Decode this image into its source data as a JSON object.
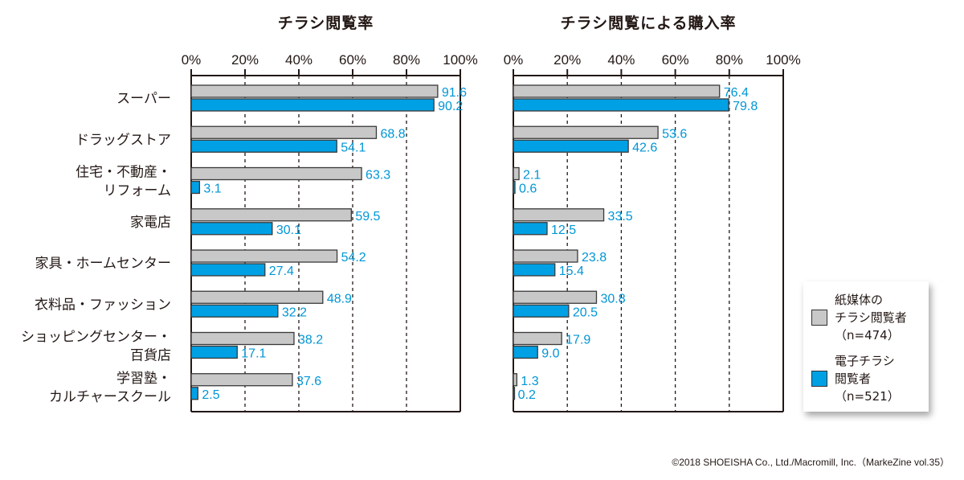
{
  "chart_data": [
    {
      "type": "bar",
      "orientation": "horizontal",
      "title": "チラシ閲覧率",
      "xlabel": "",
      "ylabel": "",
      "xlim": [
        0,
        100
      ],
      "xticks": [
        "0%",
        "20%",
        "40%",
        "60%",
        "80%",
        "100%"
      ],
      "grid": "vertical dashed",
      "categories": [
        [
          "スーパー"
        ],
        [
          "ドラッグストア"
        ],
        [
          "住宅・不動産・",
          "リフォーム"
        ],
        [
          "家電店"
        ],
        [
          "家具・ホームセンター"
        ],
        [
          "衣料品・ファッション"
        ],
        [
          "ショッピングセンター・",
          "百貨店"
        ],
        [
          "学習塾・",
          "カルチャースクール"
        ]
      ],
      "series": [
        {
          "name": "紙媒体のチラシ閲覧者（n=474）",
          "color": "#c8c8c8",
          "values": [
            91.6,
            68.8,
            63.3,
            59.5,
            54.2,
            48.9,
            38.2,
            37.6
          ],
          "labels": [
            "91.6",
            "68.8",
            "63.3",
            "59.5",
            "54.2",
            "48.9",
            "38.2",
            "37.6"
          ]
        },
        {
          "name": "電子チラシ閲覧者（n=521）",
          "color": "#00a0e4",
          "values": [
            90.2,
            54.1,
            3.1,
            30.1,
            27.4,
            32.2,
            17.1,
            2.5
          ],
          "labels": [
            "90.2",
            "54.1",
            "3.1",
            "30.1",
            "27.4",
            "32.2",
            "17.1",
            "2.5"
          ]
        }
      ]
    },
    {
      "type": "bar",
      "orientation": "horizontal",
      "title": "チラシ閲覧による購入率",
      "xlabel": "",
      "ylabel": "",
      "xlim": [
        0,
        100
      ],
      "xticks": [
        "0%",
        "20%",
        "40%",
        "60%",
        "80%",
        "100%"
      ],
      "grid": "vertical dashed",
      "series": [
        {
          "name": "紙媒体のチラシ閲覧者（n=474）",
          "color": "#c8c8c8",
          "values": [
            76.4,
            53.6,
            2.1,
            33.5,
            23.8,
            30.8,
            17.9,
            1.3
          ],
          "labels": [
            "76.4",
            "53.6",
            "2.1",
            "33.5",
            "23.8",
            "30.8",
            "17.9",
            "1.3"
          ]
        },
        {
          "name": "電子チラシ閲覧者（n=521）",
          "color": "#00a0e4",
          "values": [
            79.8,
            42.6,
            0.6,
            12.5,
            15.4,
            20.5,
            9.0,
            0.2
          ],
          "labels": [
            "79.8",
            "42.6",
            "0.6",
            "12.5",
            "15.4",
            "20.5",
            "9.0",
            "0.2"
          ]
        }
      ]
    }
  ],
  "titles": {
    "left": "チラシ閲覧率",
    "right": "チラシ閲覧による購入率"
  },
  "legend": {
    "placement": "right",
    "items": [
      {
        "lines": [
          "紙媒体の",
          "チラシ閲覧者",
          "（n=474）"
        ],
        "color": "#c8c8c8"
      },
      {
        "lines": [
          "電子チラシ",
          "閲覧者",
          "（n=521）"
        ],
        "color": "#00a0e4"
      }
    ]
  },
  "footer": "©2018 SHOEISHA Co., Ltd./Macromill, Inc.（MarkeZine vol.35）"
}
